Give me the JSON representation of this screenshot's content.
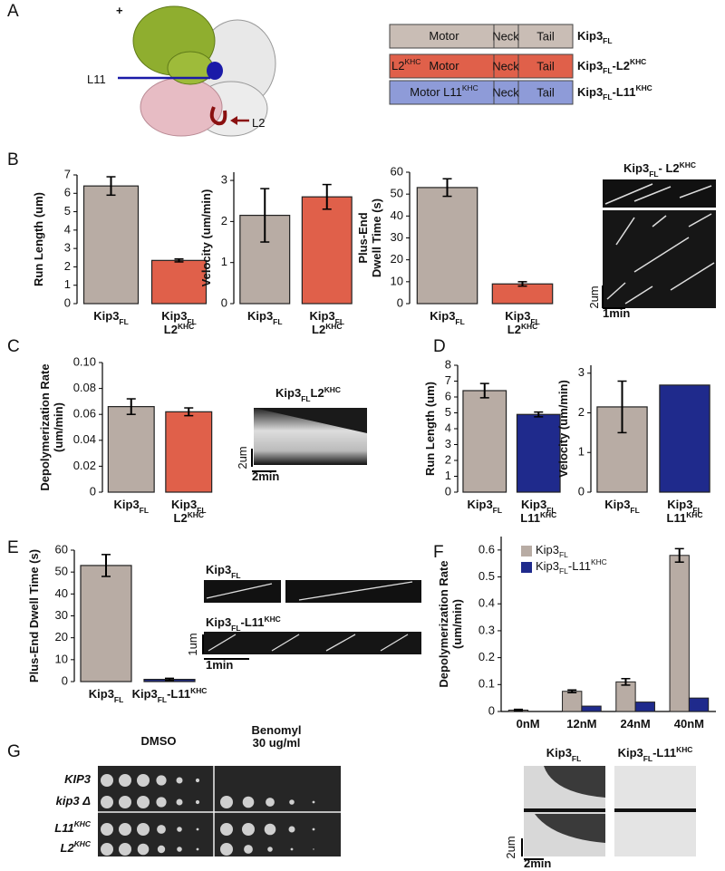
{
  "panels": {
    "letters": [
      "A",
      "B",
      "C",
      "D",
      "E",
      "F",
      "G"
    ],
    "a": {
      "plus": "+",
      "l11": "L11",
      "l2": "L2",
      "constructs": [
        {
          "motor": [
            {
              "t": "Motor"
            }
          ],
          "neck": "Neck",
          "tail": "Tail",
          "name": [
            {
              "t": "Kip3"
            },
            {
              "sub": "FL"
            }
          ],
          "color": "#c9bdb5"
        },
        {
          "tag": [
            {
              "t": "L2"
            },
            {
              "sup": "KHC"
            }
          ],
          "motor": [
            {
              "t": "Motor"
            }
          ],
          "neck": "Neck",
          "tail": "Tail",
          "name": [
            {
              "t": "Kip3"
            },
            {
              "sub": "FL"
            },
            {
              "t": "-L2"
            },
            {
              "sup": "KHC"
            }
          ],
          "color": "#e0604a"
        },
        {
          "motor": [
            {
              "t": "Motor L11"
            },
            {
              "sup": "KHC"
            }
          ],
          "neck": "Neck",
          "tail": "Tail",
          "name": [
            {
              "t": "Kip3"
            },
            {
              "sub": "FL"
            },
            {
              "t": "-L11"
            },
            {
              "sup": "KHC"
            }
          ],
          "color": "#8e9bd8"
        }
      ]
    },
    "b_kymo": {
      "title": [
        {
          "t": "Kip3"
        },
        {
          "sub": "FL"
        },
        {
          "t": "- L2"
        },
        {
          "sup": "KHC"
        }
      ],
      "scale_y": "2um",
      "scale_x": "1min"
    },
    "c_kymo": {
      "title": [
        {
          "t": "Kip3"
        },
        {
          "sub": "FL"
        },
        {
          "t": "L2"
        },
        {
          "sup": "KHC"
        }
      ],
      "scale_y": "2um",
      "scale_x": "2min"
    },
    "e_kymo": {
      "rows": [
        [
          {
            "t": "Kip3"
          },
          {
            "sub": "FL"
          }
        ],
        [
          {
            "t": "Kip3"
          },
          {
            "sub": "FL"
          },
          {
            "t": "-L11"
          },
          {
            "sup": "KHC"
          }
        ]
      ],
      "scale_y": "1um",
      "scale_x": "1min"
    },
    "g": {
      "dmso": "DMSO",
      "benomyl": [
        "Benomyl",
        "30 ug/ml"
      ],
      "strains": [
        [
          {
            "t": "KIP3"
          }
        ],
        [
          {
            "t": "kip3 Δ"
          }
        ],
        [
          {
            "t": "L11"
          },
          {
            "sup": "KHC"
          }
        ],
        [
          {
            "t": "L2"
          },
          {
            "sup": "KHC"
          }
        ]
      ],
      "kymo_titles": [
        [
          {
            "t": "Kip3"
          },
          {
            "sub": "FL"
          }
        ],
        [
          {
            "t": "Kip3"
          },
          {
            "sub": "FL"
          },
          {
            "t": "-L11"
          },
          {
            "sup": "KHC"
          }
        ]
      ],
      "scale_y": "2um",
      "scale_x": "2min"
    }
  },
  "chart_data": [
    {
      "type": "bar",
      "ylabel": [
        "Run Length (um)"
      ],
      "categories": [
        [
          [
            {
              "t": "Kip3"
            },
            {
              "sub": "FL"
            }
          ]
        ],
        [
          [
            {
              "t": "Kip3"
            },
            {
              "sub": "FL"
            }
          ],
          [
            {
              "t": "L2"
            },
            {
              "sup": "KHC"
            }
          ]
        ]
      ],
      "values": [
        6.4,
        2.35
      ],
      "errors": [
        0.5,
        0.08
      ],
      "colors": [
        "#b8aca4",
        "#e0604a"
      ],
      "ylim": [
        0,
        7
      ],
      "yticks": [
        0,
        1,
        2,
        3,
        4,
        5,
        6,
        7
      ]
    },
    {
      "type": "bar",
      "ylabel": [
        "Velocity (um/min)"
      ],
      "categories": [
        [
          [
            {
              "t": "Kip3"
            },
            {
              "sub": "FL"
            }
          ]
        ],
        [
          [
            {
              "t": "Kip3"
            },
            {
              "sub": "FL"
            }
          ],
          [
            {
              "t": "L2"
            },
            {
              "sup": "KHC"
            }
          ]
        ]
      ],
      "values": [
        2.15,
        2.6
      ],
      "errors": [
        0.65,
        0.3
      ],
      "colors": [
        "#b8aca4",
        "#e0604a"
      ],
      "ylim": [
        0,
        3.2
      ],
      "yticks": [
        0,
        1,
        2,
        3
      ]
    },
    {
      "type": "bar",
      "ylabel": [
        "Plus-End",
        "Dwell Time (s)"
      ],
      "categories": [
        [
          [
            {
              "t": "Kip3"
            },
            {
              "sub": "FL"
            }
          ]
        ],
        [
          [
            {
              "t": "Kip3"
            },
            {
              "sub": "FL"
            }
          ],
          [
            {
              "t": "L2"
            },
            {
              "sup": "KHC"
            }
          ]
        ]
      ],
      "values": [
        53,
        9
      ],
      "errors": [
        4,
        1
      ],
      "colors": [
        "#b8aca4",
        "#e0604a"
      ],
      "ylim": [
        0,
        60
      ],
      "yticks": [
        0,
        10,
        20,
        30,
        40,
        50,
        60
      ]
    },
    {
      "type": "bar",
      "ylabel": [
        "Depolymerization Rate",
        "(um/min)"
      ],
      "categories": [
        [
          [
            {
              "t": "Kip3"
            },
            {
              "sub": "FL"
            }
          ]
        ],
        [
          [
            {
              "t": "Kip3"
            },
            {
              "sub": "FL"
            }
          ],
          [
            {
              "t": "L2"
            },
            {
              "sup": "KHC"
            }
          ]
        ]
      ],
      "values": [
        0.066,
        0.062
      ],
      "errors": [
        0.006,
        0.003
      ],
      "colors": [
        "#b8aca4",
        "#e0604a"
      ],
      "ylim": [
        0,
        0.1
      ],
      "yticks": [
        0,
        0.02,
        0.04,
        0.06,
        0.08,
        {
          "value": 0.1,
          "label": "0.10"
        }
      ]
    },
    {
      "type": "bar",
      "ylabel": [
        "Run Length (um)"
      ],
      "categories": [
        [
          [
            {
              "t": "Kip3"
            },
            {
              "sub": "FL"
            }
          ]
        ],
        [
          [
            {
              "t": "Kip3"
            },
            {
              "sub": "FL"
            }
          ],
          [
            {
              "t": "L11"
            },
            {
              "sup": "KHC"
            }
          ]
        ]
      ],
      "values": [
        6.4,
        4.9
      ],
      "errors": [
        0.45,
        0.15
      ],
      "colors": [
        "#b8aca4",
        "#1f2a8c"
      ],
      "ylim": [
        0,
        8
      ],
      "yticks": [
        0,
        1,
        2,
        3,
        4,
        5,
        6,
        7,
        8
      ]
    },
    {
      "type": "bar",
      "ylabel": [
        "Velocity (um/min)"
      ],
      "categories": [
        [
          [
            {
              "t": "Kip3"
            },
            {
              "sub": "FL"
            }
          ]
        ],
        [
          [
            {
              "t": "Kip3"
            },
            {
              "sub": "FL"
            }
          ],
          [
            {
              "t": "L11"
            },
            {
              "sup": "KHC"
            }
          ]
        ]
      ],
      "values": [
        2.15,
        2.7
      ],
      "errors": [
        0.65,
        0
      ],
      "colors": [
        "#b8aca4",
        "#1f2a8c"
      ],
      "ylim": [
        0,
        3.2
      ],
      "yticks": [
        0,
        1,
        2,
        3
      ]
    },
    {
      "type": "bar",
      "ylabel": [
        "Plus-End Dwell Time (s)"
      ],
      "categories": [
        [
          [
            {
              "t": "Kip3"
            },
            {
              "sub": "FL"
            }
          ]
        ],
        [
          [
            {
              "t": "Kip3"
            },
            {
              "sub": "FL"
            },
            {
              "t": "-L11"
            },
            {
              "sup": "KHC"
            }
          ]
        ]
      ],
      "values": [
        53,
        1
      ],
      "errors": [
        5,
        0.5
      ],
      "colors": [
        "#b8aca4",
        "#1f2a8c"
      ],
      "ylim": [
        0,
        60
      ],
      "yticks": [
        0,
        10,
        20,
        30,
        40,
        50,
        60
      ]
    },
    {
      "type": "grouped_bar",
      "ylabel": [
        "Depolymerization Rate",
        "(um/min)"
      ],
      "categories": [
        "0nM",
        "12nM",
        "24nM",
        "40nM"
      ],
      "series": [
        {
          "name": [
            {
              "t": "Kip3"
            },
            {
              "sub": "FL"
            }
          ],
          "color": "#b8aca4",
          "values": [
            0.005,
            0.075,
            0.11,
            0.58
          ],
          "errors": [
            0.003,
            0.005,
            0.012,
            0.025
          ]
        },
        {
          "name": [
            {
              "t": "Kip3"
            },
            {
              "sub": "FL"
            },
            {
              "t": "-L11"
            },
            {
              "sup": "KHC"
            }
          ],
          "color": "#1f2a8c",
          "values": [
            0,
            0.02,
            0.035,
            0.05
          ]
        }
      ],
      "ylim": [
        0,
        0.65
      ],
      "yticks": [
        0,
        0.1,
        0.2,
        0.3,
        0.4,
        0.5,
        0.6
      ],
      "legend": "upper-left"
    }
  ]
}
